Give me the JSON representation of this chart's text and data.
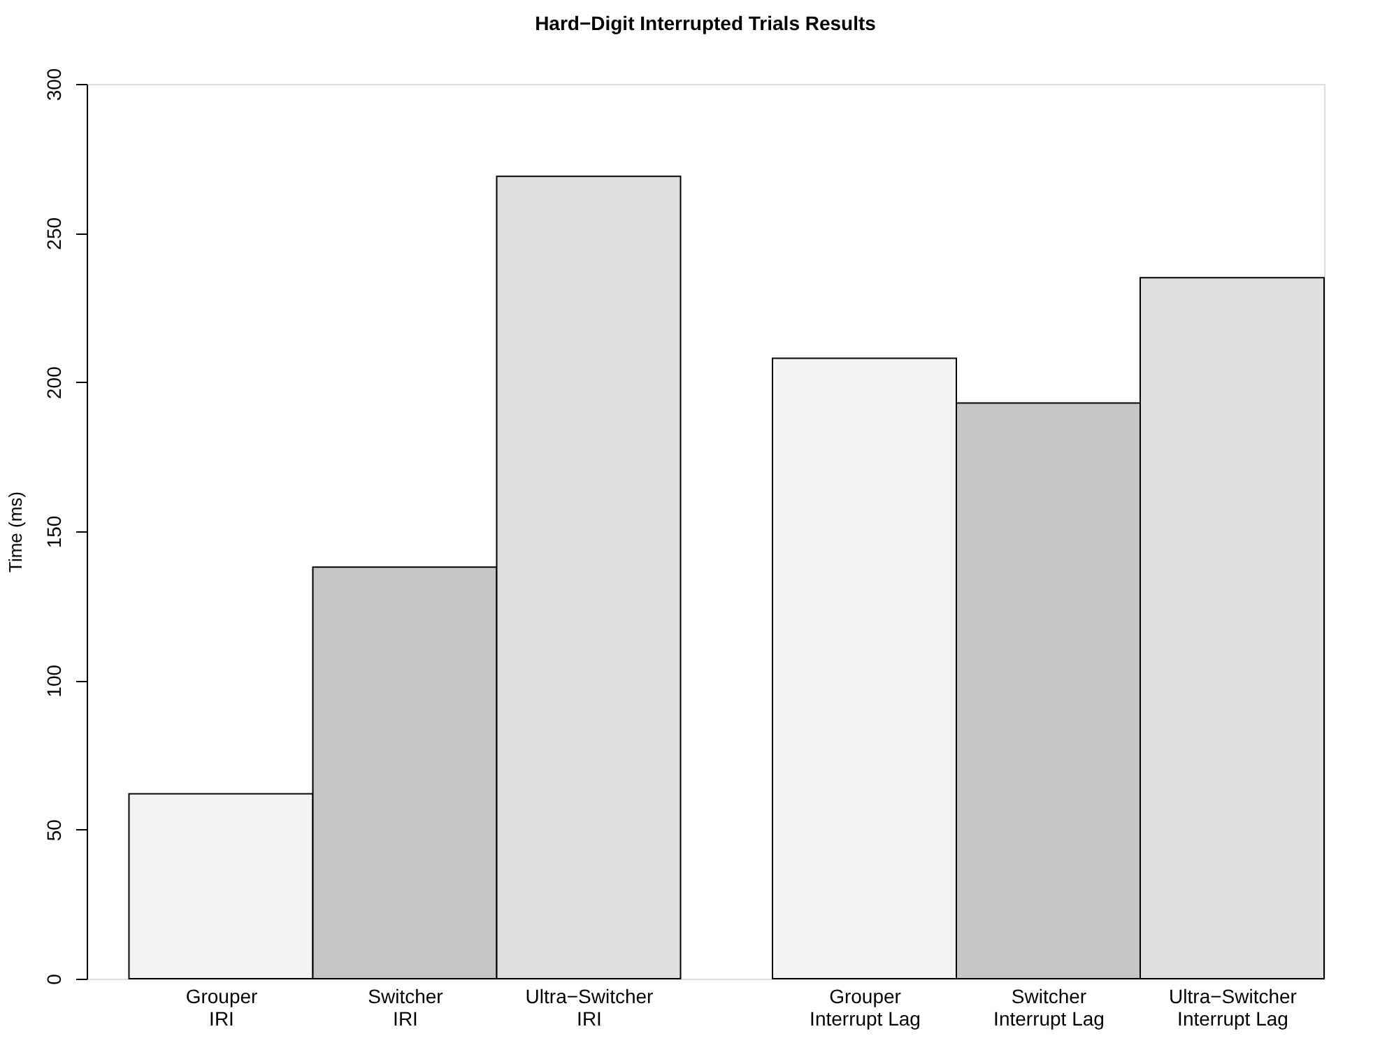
{
  "chart_data": {
    "type": "bar",
    "title": "Hard−Digit Interrupted Trials Results",
    "ylabel": "Time (ms)",
    "categories": [
      "Grouper\nIRI",
      "Switcher\nIRI",
      "Ultra−Switcher\nIRI",
      null,
      "Grouper\nInterrupt Lag",
      "Switcher\nInterrupt Lag",
      "Ultra−Switcher\nInterrupt Lag"
    ],
    "values": [
      62,
      138,
      269,
      null,
      208,
      193,
      235
    ],
    "colors": [
      "#f4f4f4",
      "#c6c6c6",
      "#e0e0e0",
      "#ffffff",
      "#f4f4f4",
      "#c6c6c6",
      "#e0e0e0"
    ],
    "ylim": [
      0,
      300
    ],
    "yticks": [
      0,
      50,
      100,
      150,
      200,
      250,
      300
    ],
    "grid": false
  }
}
